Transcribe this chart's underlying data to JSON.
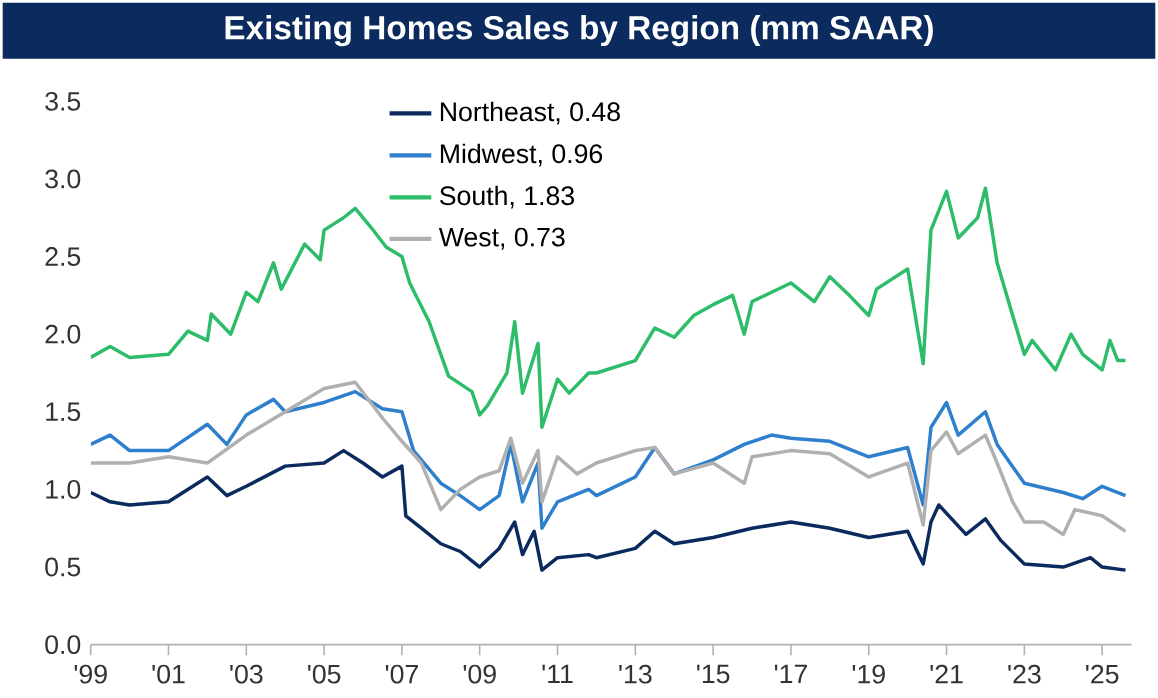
{
  "chart_data": {
    "type": "line",
    "title": "Existing Homes Sales by Region (mm SAAR)",
    "xlim": [
      1999,
      2025.75
    ],
    "ylim": [
      0,
      3.5
    ],
    "xticks": [
      {
        "value": 1999,
        "label": "'99"
      },
      {
        "value": 2001,
        "label": "'01"
      },
      {
        "value": 2003,
        "label": "'03"
      },
      {
        "value": 2005,
        "label": "'05"
      },
      {
        "value": 2007,
        "label": "'07"
      },
      {
        "value": 2009,
        "label": "'09"
      },
      {
        "value": 2011,
        "label": "'11"
      },
      {
        "value": 2013,
        "label": "'13"
      },
      {
        "value": 2015,
        "label": "'15"
      },
      {
        "value": 2017,
        "label": "'17"
      },
      {
        "value": 2019,
        "label": "'19"
      },
      {
        "value": 2021,
        "label": "'21"
      },
      {
        "value": 2023,
        "label": "'23"
      },
      {
        "value": 2025,
        "label": "'25"
      }
    ],
    "yticks": [
      {
        "value": 0,
        "label": "0.0"
      },
      {
        "value": 0.5,
        "label": "0.5"
      },
      {
        "value": 1,
        "label": "1.0"
      },
      {
        "value": 1.5,
        "label": "1.5"
      },
      {
        "value": 2,
        "label": "2.0"
      },
      {
        "value": 2.5,
        "label": "2.5"
      },
      {
        "value": 3,
        "label": "3.0"
      },
      {
        "value": 3.5,
        "label": "3.5"
      }
    ],
    "grid": false,
    "legend": "top",
    "marker": "none",
    "line_style": "solid",
    "series": [
      {
        "name": "Northeast, 0.48",
        "color": "#0b2a5e",
        "x": [
          1999,
          1999.5,
          2000,
          2001,
          2002,
          2002.5,
          2003,
          2004,
          2005,
          2005.5,
          2006,
          2006.5,
          2007,
          2007.1,
          2007.5,
          2008,
          2008.5,
          2009,
          2009.5,
          2009.9,
          2010.1,
          2010.4,
          2010.6,
          2011,
          2011.8,
          2012,
          2013,
          2013.5,
          2014,
          2015,
          2016,
          2017,
          2018,
          2019,
          2020,
          2020.4,
          2020.6,
          2020.8,
          2021.5,
          2022,
          2022.4,
          2023,
          2024,
          2024.7,
          2025,
          2025.6
        ],
        "values": [
          0.98,
          0.92,
          0.9,
          0.92,
          1.08,
          0.96,
          1.02,
          1.15,
          1.17,
          1.25,
          1.17,
          1.08,
          1.15,
          0.83,
          0.75,
          0.65,
          0.6,
          0.5,
          0.62,
          0.79,
          0.58,
          0.73,
          0.48,
          0.56,
          0.58,
          0.56,
          0.62,
          0.73,
          0.65,
          0.69,
          0.75,
          0.79,
          0.75,
          0.69,
          0.73,
          0.52,
          0.79,
          0.9,
          0.71,
          0.81,
          0.67,
          0.52,
          0.5,
          0.56,
          0.5,
          0.48
        ]
      },
      {
        "name": "Midwest, 0.96",
        "color": "#2e7fcc",
        "x": [
          1999,
          1999.5,
          2000,
          2001,
          2002,
          2002.5,
          2003,
          2003.7,
          2004,
          2005,
          2005.8,
          2006.5,
          2007,
          2007.3,
          2008,
          2008.5,
          2009,
          2009.5,
          2009.8,
          2010.1,
          2010.5,
          2010.6,
          2011,
          2011.8,
          2012,
          2013,
          2013.5,
          2014,
          2015,
          2015.8,
          2016.5,
          2017,
          2018,
          2019,
          2020,
          2020.4,
          2020.6,
          2021,
          2021.3,
          2022,
          2022.3,
          2023,
          2024,
          2024.5,
          2025,
          2025.6
        ],
        "values": [
          1.29,
          1.35,
          1.25,
          1.25,
          1.42,
          1.29,
          1.48,
          1.58,
          1.5,
          1.56,
          1.63,
          1.52,
          1.5,
          1.25,
          1.04,
          0.96,
          0.87,
          0.96,
          1.29,
          0.92,
          1.17,
          0.75,
          0.92,
          1.0,
          0.96,
          1.08,
          1.27,
          1.1,
          1.19,
          1.29,
          1.35,
          1.33,
          1.31,
          1.21,
          1.27,
          0.9,
          1.4,
          1.56,
          1.35,
          1.5,
          1.29,
          1.04,
          0.98,
          0.94,
          1.02,
          0.96
        ]
      },
      {
        "name": "South, 1.83",
        "color": "#2dbd6a",
        "x": [
          1999,
          1999.5,
          2000,
          2001,
          2001.5,
          2002,
          2002.1,
          2002.6,
          2003,
          2003.3,
          2003.7,
          2003.9,
          2004.5,
          2004.9,
          2005,
          2005.5,
          2005.8,
          2006.2,
          2006.6,
          2007,
          2007.2,
          2007.7,
          2008,
          2008.2,
          2008.8,
          2009,
          2009.2,
          2009.7,
          2009.9,
          2010.1,
          2010.5,
          2010.6,
          2011,
          2011.3,
          2011.8,
          2012,
          2013,
          2013.5,
          2014,
          2014.5,
          2015,
          2015.5,
          2015.8,
          2016,
          2017,
          2017.6,
          2018,
          2018.5,
          2019,
          2019.2,
          2020,
          2020.4,
          2020.6,
          2021,
          2021.3,
          2021.8,
          2022,
          2022.3,
          2022.7,
          2023,
          2023.2,
          2023.8,
          2024.2,
          2024.5,
          2025,
          2025.2,
          2025.4,
          2025.6
        ],
        "values": [
          1.85,
          1.92,
          1.85,
          1.87,
          2.02,
          1.96,
          2.13,
          2.0,
          2.27,
          2.21,
          2.46,
          2.29,
          2.58,
          2.48,
          2.67,
          2.75,
          2.81,
          2.69,
          2.56,
          2.5,
          2.33,
          2.08,
          1.87,
          1.73,
          1.63,
          1.48,
          1.54,
          1.75,
          2.08,
          1.62,
          1.94,
          1.4,
          1.71,
          1.62,
          1.75,
          1.75,
          1.83,
          2.04,
          1.98,
          2.12,
          2.19,
          2.25,
          2.0,
          2.21,
          2.33,
          2.21,
          2.37,
          2.25,
          2.12,
          2.29,
          2.42,
          1.81,
          2.67,
          2.92,
          2.62,
          2.75,
          2.94,
          2.46,
          2.12,
          1.87,
          1.96,
          1.77,
          2.0,
          1.87,
          1.77,
          1.96,
          1.83,
          1.83
        ]
      },
      {
        "name": "West, 0.73",
        "color": "#b0b0b0",
        "x": [
          1999,
          2000,
          2001,
          2002,
          2003,
          2004,
          2005,
          2005.8,
          2006.5,
          2007,
          2007.5,
          2008,
          2008.5,
          2009,
          2009.5,
          2009.8,
          2010.1,
          2010.5,
          2010.6,
          2011,
          2011.5,
          2012,
          2013,
          2013.5,
          2014,
          2015,
          2015.8,
          2016,
          2017,
          2018,
          2019,
          2020,
          2020.4,
          2020.6,
          2021,
          2021.3,
          2022,
          2022.3,
          2022.7,
          2023,
          2023.5,
          2024,
          2024.3,
          2025,
          2025.6
        ],
        "values": [
          1.17,
          1.17,
          1.21,
          1.17,
          1.35,
          1.5,
          1.65,
          1.69,
          1.46,
          1.31,
          1.17,
          0.87,
          1.0,
          1.08,
          1.12,
          1.33,
          1.04,
          1.25,
          0.92,
          1.21,
          1.1,
          1.17,
          1.25,
          1.27,
          1.1,
          1.17,
          1.04,
          1.21,
          1.25,
          1.23,
          1.08,
          1.17,
          0.77,
          1.25,
          1.37,
          1.23,
          1.35,
          1.17,
          0.92,
          0.79,
          0.79,
          0.71,
          0.87,
          0.83,
          0.73
        ]
      }
    ]
  }
}
